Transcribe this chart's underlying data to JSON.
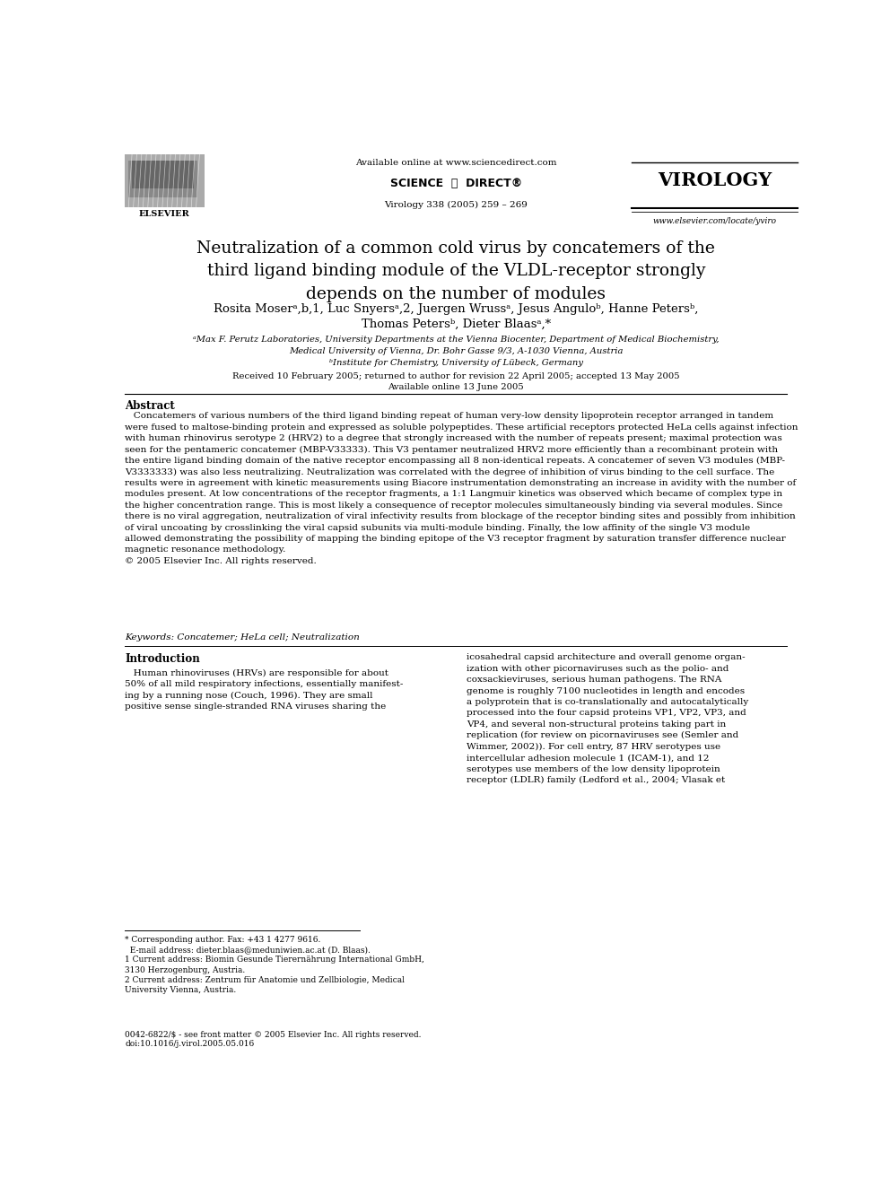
{
  "bg_color": "#ffffff",
  "page_width": 9.92,
  "page_height": 13.23,
  "header": {
    "elsevier_text": "ELSEVIER",
    "available_online": "Available online at www.sciencedirect.com",
    "journal_info": "Virology 338 (2005) 259 – 269",
    "journal_name": "VIROLOGY",
    "journal_url": "www.elsevier.com/locate/yviro"
  },
  "title": "Neutralization of a common cold virus by concatemers of the\nthird ligand binding module of the VLDL-receptor strongly\ndepends on the number of modules",
  "authors_line1": "Rosita Moserᵃ,b,1, Luc Snyersᵃ,2, Juergen Wrussᵃ, Jesus Anguloᵇ, Hanne Petersᵇ,",
  "authors_line2": "Thomas Petersᵇ, Dieter Blaasᵃ,*",
  "affil_a": "ᵃMax F. Perutz Laboratories, University Departments at the Vienna Biocenter, Department of Medical Biochemistry,",
  "affil_a2": "Medical University of Vienna, Dr. Bohr Gasse 9/3, A-1030 Vienna, Austria",
  "affil_b": "ᵇInstitute for Chemistry, University of Lübeck, Germany",
  "dates_line1": "Received 10 February 2005; returned to author for revision 22 April 2005; accepted 13 May 2005",
  "dates_line2": "Available online 13 June 2005",
  "abstract_label": "Abstract",
  "abstract_lines": [
    "   Concatemers of various numbers of the third ligand binding repeat of human very-low density lipoprotein receptor arranged in tandem",
    "were fused to maltose-binding protein and expressed as soluble polypeptides. These artificial receptors protected HeLa cells against infection",
    "with human rhinovirus serotype 2 (HRV2) to a degree that strongly increased with the number of repeats present; maximal protection was",
    "seen for the pentameric concatemer (MBP-V33333). This V3 pentamer neutralized HRV2 more efficiently than a recombinant protein with",
    "the entire ligand binding domain of the native receptor encompassing all 8 non-identical repeats. A concatemer of seven V3 modules (MBP-",
    "V3333333) was also less neutralizing. Neutralization was correlated with the degree of inhibition of virus binding to the cell surface. The",
    "results were in agreement with kinetic measurements using Biacore instrumentation demonstrating an increase in avidity with the number of",
    "modules present. At low concentrations of the receptor fragments, a 1:1 Langmuir kinetics was observed which became of complex type in",
    "the higher concentration range. This is most likely a consequence of receptor molecules simultaneously binding via several modules. Since",
    "there is no viral aggregation, neutralization of viral infectivity results from blockage of the receptor binding sites and possibly from inhibition",
    "of viral uncoating by crosslinking the viral capsid subunits via multi-module binding. Finally, the low affinity of the single V3 module",
    "allowed demonstrating the possibility of mapping the binding epitope of the V3 receptor fragment by saturation transfer difference nuclear",
    "magnetic resonance methodology.",
    "© 2005 Elsevier Inc. All rights reserved."
  ],
  "keywords": "Keywords: Concatemer; HeLa cell; Neutralization",
  "intro_label": "Introduction",
  "intro_col1_lines": [
    "   Human rhinoviruses (HRVs) are responsible for about",
    "50% of all mild respiratory infections, essentially manifest-",
    "ing by a running nose (Couch, 1996). They are small",
    "positive sense single-stranded RNA viruses sharing the"
  ],
  "intro_col2_lines": [
    "icosahedral capsid architecture and overall genome organ-",
    "ization with other picornaviruses such as the polio- and",
    "coxsackieviruses, serious human pathogens. The RNA",
    "genome is roughly 7100 nucleotides in length and encodes",
    "a polyprotein that is co-translationally and autocatalytically",
    "processed into the four capsid proteins VP1, VP2, VP3, and",
    "VP4, and several non-structural proteins taking part in",
    "replication (for review on picornaviruses see (Semler and",
    "Wimmer, 2002)). For cell entry, 87 HRV serotypes use",
    "intercellular adhesion molecule 1 (ICAM-1), and 12",
    "serotypes use members of the low density lipoprotein",
    "receptor (LDLR) family (Ledford et al., 2004; Vlasak et"
  ],
  "footnote1": "* Corresponding author. Fax: +43 1 4277 9616.",
  "footnote2": "  E-mail address: dieter.blaas@meduniwien.ac.at (D. Blaas).",
  "footnote3": "1 Current address: Biomin Gesunde Tierernährung International GmbH,",
  "footnote3b": "3130 Herzogenburg, Austria.",
  "footnote4": "2 Current address: Zentrum für Anatomie und Zellbiologie, Medical",
  "footnote4b": "University Vienna, Austria.",
  "copyright1": "0042-6822/$ - see front matter © 2005 Elsevier Inc. All rights reserved.",
  "copyright2": "doi:10.1016/j.virol.2005.05.016"
}
